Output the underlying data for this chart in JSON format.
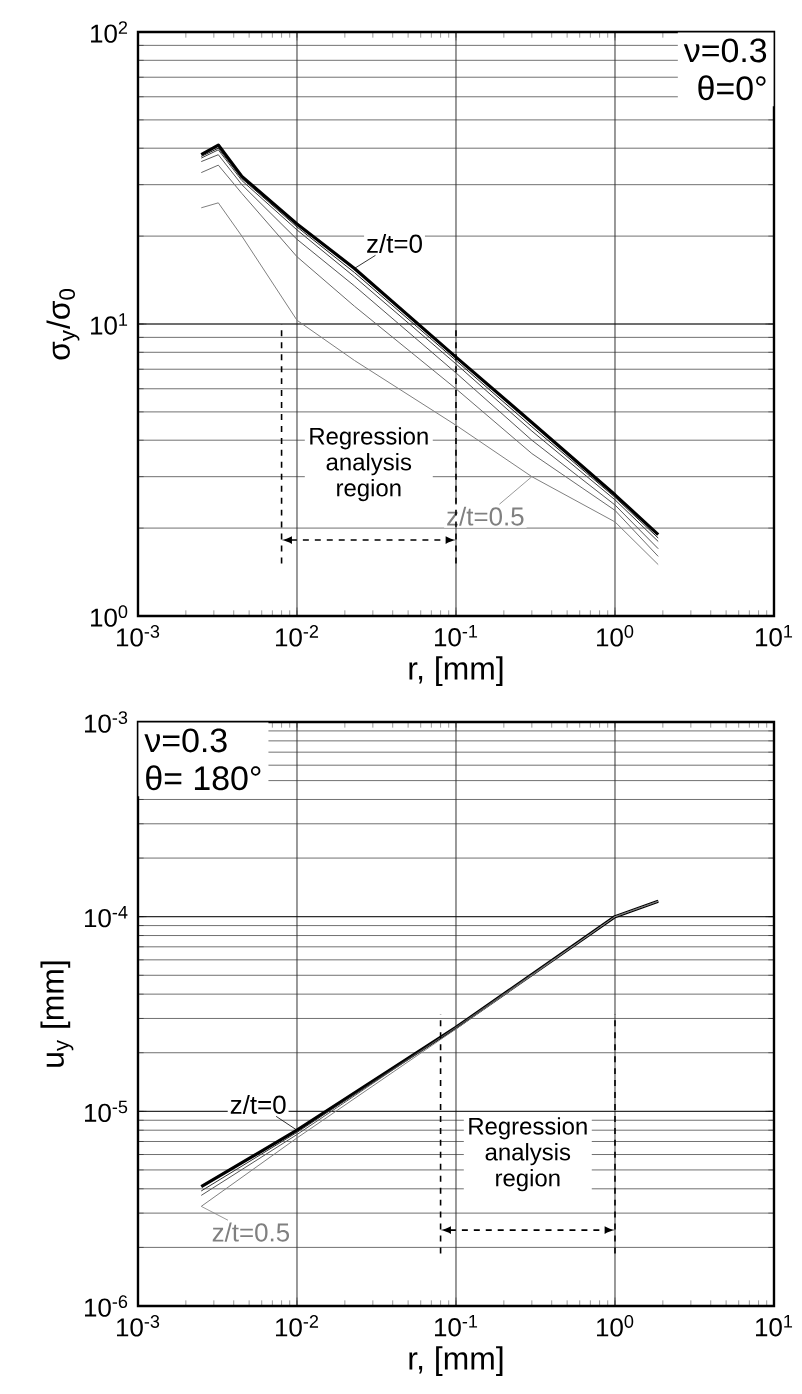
{
  "chart_data": [
    {
      "type": "line",
      "xlabel": "r, [mm]",
      "ylabel": "σ$_{y}$/σ$_{0}$",
      "log": "xy",
      "grid": true,
      "marker": "none",
      "line_style": "solid",
      "x": [
        0.0025,
        0.0032,
        0.0045,
        0.01,
        0.023,
        0.1,
        0.3,
        1,
        1.87
      ],
      "series": [
        {
          "name": "z/t=0",
          "color": "#000000",
          "values": [
            38,
            41,
            32,
            22,
            15.5,
            7.7,
            4.6,
            2.6,
            1.9
          ]
        },
        {
          "color": "#202020",
          "values": [
            37.5,
            40,
            31.5,
            21.5,
            15,
            7.5,
            4.45,
            2.55,
            1.85
          ]
        },
        {
          "color": "#404040",
          "values": [
            37,
            39.5,
            31,
            21,
            14.5,
            7.3,
            4.3,
            2.5,
            1.8
          ]
        },
        {
          "color": "#555555",
          "values": [
            36,
            38,
            30,
            19.5,
            13.5,
            6.8,
            4.0,
            2.4,
            1.7
          ]
        },
        {
          "color": "#6a6a6a",
          "values": [
            33,
            35,
            28,
            17,
            11.5,
            6,
            3.6,
            2.3,
            1.6
          ]
        },
        {
          "name": "z/t=0.5",
          "color": "#808080",
          "values": [
            25,
            26,
            20,
            10.3,
            7.5,
            4.5,
            3.0,
            2.1,
            1.5
          ]
        }
      ],
      "xlim": [
        0.001,
        10
      ],
      "ylim": [
        1,
        100
      ],
      "xticks": [
        {
          "value": 0.001,
          "label": "10$^{-3}$"
        },
        {
          "value": 0.01,
          "label": "10$^{-2}$"
        },
        {
          "value": 0.1,
          "label": "10$^{-1}$"
        },
        {
          "value": 1,
          "label": "10$^{0}$"
        },
        {
          "value": 10,
          "label": "10$^{1}$"
        }
      ],
      "yticks": [
        {
          "value": 1,
          "label": "10$^{0}$"
        },
        {
          "value": 10,
          "label": "10$^{1}$"
        },
        {
          "value": 100,
          "label": "10$^{2}$"
        }
      ],
      "ref_lines": [
        {
          "axis": "x",
          "value": 0.008,
          "line_style": "dashed"
        },
        {
          "axis": "x",
          "value": 0.1,
          "line_style": "dashed"
        }
      ],
      "annotations": [
        "ν=0.3",
        "θ=0°",
        "Regression analysis region"
      ]
    },
    {
      "type": "line",
      "xlabel": "r, [mm]",
      "ylabel": "u$_{y}$ [mm]",
      "log": "xy",
      "grid": true,
      "marker": "none",
      "line_style": "solid",
      "x": [
        0.0025,
        0.01,
        0.1,
        1,
        1.87
      ],
      "series": [
        {
          "name": "z/t=0",
          "color": "#000000",
          "values": [
            4.1e-06,
            8e-06,
            2.7e-05,
            0.0001,
            0.00012
          ]
        },
        {
          "color": "#303030",
          "values": [
            3.9e-06,
            7.8e-06,
            2.7e-05,
            0.0001,
            0.00012
          ]
        },
        {
          "color": "#555555",
          "values": [
            3.7e-06,
            7.6e-06,
            2.7e-05,
            0.0001,
            0.00012
          ]
        },
        {
          "name": "z/t=0.5",
          "color": "#808080",
          "values": [
            3.25e-06,
            7.3e-06,
            2.65e-05,
            0.0001,
            0.00012
          ]
        }
      ],
      "xlim": [
        0.001,
        10
      ],
      "ylim": [
        1e-06,
        0.001
      ],
      "xticks": [
        {
          "value": 0.001,
          "label": "10$^{-3}$"
        },
        {
          "value": 0.01,
          "label": "10$^{-2}$"
        },
        {
          "value": 0.1,
          "label": "10$^{-1}$"
        },
        {
          "value": 1,
          "label": "10$^{0}$"
        },
        {
          "value": 10,
          "label": "10$^{1}$"
        }
      ],
      "yticks": [
        {
          "value": 1e-06,
          "label": "10$^{-6}$"
        },
        {
          "value": 1e-05,
          "label": "10$^{-5}$"
        },
        {
          "value": 0.0001,
          "label": "10$^{-4}$"
        },
        {
          "value": 0.001,
          "label": "10$^{-3}$"
        }
      ],
      "ref_lines": [
        {
          "axis": "x",
          "value": 0.08,
          "line_style": "dashed"
        },
        {
          "axis": "x",
          "value": 1,
          "line_style": "dashed"
        }
      ],
      "annotations": [
        "ν=0.3",
        "θ= 180°",
        "Regression analysis region"
      ]
    }
  ]
}
